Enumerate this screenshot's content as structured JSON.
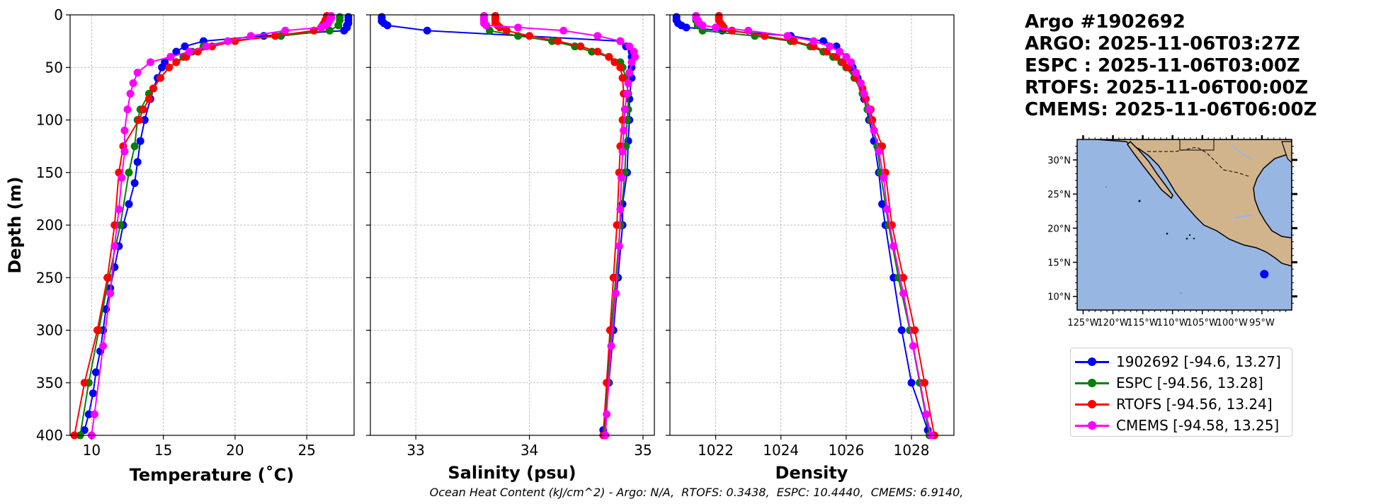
{
  "title_lines": [
    "Argo #1902692",
    "ARGO: 2025-11-06T03:27Z",
    "ESPC : 2025-11-06T03:00Z",
    "RTOFS: 2025-11-06T00:00Z",
    "CMEMS: 2025-11-06T06:00Z"
  ],
  "footer": "Ocean Heat Content (kJ/cm^2) - Argo: N/A,  RTOFS: 0.3438,  ESPC: 10.4440,  CMEMS: 6.9140,",
  "colors": {
    "argo": "#0000ff",
    "espc": "#008000",
    "rtofs": "#ff0000",
    "cmems": "#ff00ff",
    "ocean": "#98b6e2",
    "land": "#d2b48c"
  },
  "legend": [
    {
      "label": "1902692 [-94.6, 13.27]",
      "color": "#0000ff"
    },
    {
      "label": "ESPC [-94.56, 13.28]",
      "color": "#008000"
    },
    {
      "label": "RTOFS [-94.56, 13.24]",
      "color": "#ff0000"
    },
    {
      "label": "CMEMS [-94.58, 13.25]",
      "color": "#ff00ff"
    }
  ],
  "chart_data": [
    {
      "type": "line",
      "xlabel": "Temperature (˚C)",
      "ylabel": "Depth (m)",
      "xlim": [
        8.5,
        28.3
      ],
      "ylim": [
        400,
        0
      ],
      "xticks": [
        10,
        15,
        20,
        25
      ],
      "yticks": [
        0,
        50,
        100,
        150,
        200,
        250,
        300,
        350,
        400
      ],
      "grid": true,
      "series": [
        {
          "name": "1902692 [-94.6, 13.27]",
          "color": "#0000ff",
          "depth": [
            2,
            5,
            8,
            10,
            12,
            15,
            20,
            25,
            30,
            35,
            40,
            45,
            50,
            60,
            70,
            80,
            100,
            120,
            140,
            160,
            180,
            200,
            220,
            240,
            260,
            280,
            300,
            320,
            340,
            360,
            380,
            395
          ],
          "values": [
            27.9,
            27.9,
            27.9,
            27.8,
            27.8,
            27.6,
            22.0,
            17.8,
            16.5,
            15.9,
            15.5,
            15.1,
            14.9,
            14.6,
            14.3,
            14.1,
            13.7,
            13.4,
            13.2,
            13.0,
            12.6,
            12.2,
            11.9,
            11.6,
            11.3,
            11.0,
            10.8,
            10.6,
            10.3,
            10.1,
            9.8,
            9.5
          ]
        },
        {
          "name": "ESPC [-94.56, 13.28]",
          "color": "#008000",
          "depth": [
            2,
            5,
            10,
            15,
            20,
            25,
            30,
            35,
            40,
            45,
            50,
            60,
            75,
            90,
            100,
            125,
            150,
            200,
            250,
            300,
            350,
            400
          ],
          "values": [
            27.3,
            27.3,
            27.2,
            26.6,
            23.2,
            19.5,
            17.8,
            17.0,
            16.4,
            15.9,
            15.4,
            14.8,
            14.0,
            13.4,
            13.2,
            13.0,
            12.6,
            12.0,
            11.2,
            10.5,
            9.8,
            9.2
          ]
        },
        {
          "name": "RTOFS [-94.56, 13.24]",
          "color": "#ff0000",
          "depth": [
            1,
            3,
            5,
            8,
            10,
            12,
            15,
            20,
            25,
            30,
            35,
            40,
            45,
            50,
            60,
            70,
            80,
            90,
            100,
            125,
            150,
            200,
            250,
            300,
            350,
            400
          ],
          "values": [
            26.4,
            26.4,
            26.3,
            26.2,
            26.1,
            26.0,
            25.5,
            22.8,
            20.0,
            18.4,
            17.4,
            16.6,
            15.9,
            15.4,
            14.8,
            14.3,
            14.0,
            13.6,
            13.3,
            12.2,
            11.9,
            11.6,
            11.1,
            10.4,
            9.5,
            8.8
          ]
        },
        {
          "name": "CMEMS [-94.58, 13.25]",
          "color": "#ff00ff",
          "depth": [
            1,
            3,
            5,
            8,
            10,
            12,
            15,
            20,
            25,
            30,
            35,
            40,
            45,
            55,
            65,
            75,
            90,
            110,
            130,
            155,
            185,
            220,
            265,
            315,
            380,
            400
          ],
          "values": [
            26.7,
            26.7,
            26.6,
            26.5,
            26.3,
            26.0,
            23.5,
            21.1,
            19.5,
            18.0,
            16.8,
            15.5,
            14.1,
            13.2,
            12.9,
            12.7,
            12.5,
            12.3,
            12.3,
            12.1,
            11.9,
            11.6,
            11.3,
            10.8,
            10.2,
            10.0
          ]
        }
      ]
    },
    {
      "type": "line",
      "xlabel": "Salinity (psu)",
      "ylabel": "",
      "xlim": [
        32.6,
        35.1
      ],
      "ylim": [
        400,
        0
      ],
      "xticks": [
        33,
        34,
        35
      ],
      "yticks": [
        0,
        50,
        100,
        150,
        200,
        250,
        300,
        350,
        400
      ],
      "grid": true,
      "series": [
        {
          "name": "1902692 [-94.6, 13.27]",
          "color": "#0000ff",
          "depth": [
            2,
            4,
            6,
            8,
            10,
            15,
            25,
            30,
            35,
            40,
            50,
            60,
            80,
            100,
            120,
            150,
            180,
            200,
            250,
            300,
            350,
            395
          ],
          "values": [
            32.7,
            32.7,
            32.7,
            32.72,
            32.75,
            33.1,
            34.8,
            34.85,
            34.9,
            34.9,
            34.9,
            34.9,
            34.88,
            34.88,
            34.87,
            34.86,
            34.82,
            34.82,
            34.78,
            34.74,
            34.7,
            34.65
          ]
        },
        {
          "name": "ESPC [-94.56, 13.28]",
          "color": "#008000",
          "depth": [
            5,
            10,
            15,
            20,
            25,
            30,
            35,
            40,
            45,
            50,
            60,
            75,
            90,
            100,
            125,
            150,
            200,
            250,
            300,
            350,
            400
          ],
          "values": [
            33.6,
            33.62,
            33.65,
            33.9,
            34.2,
            34.4,
            34.55,
            34.7,
            34.8,
            34.82,
            34.85,
            34.87,
            34.87,
            34.86,
            34.85,
            34.84,
            34.8,
            34.76,
            34.72,
            34.69,
            34.66
          ]
        },
        {
          "name": "RTOFS [-94.56, 13.24]",
          "color": "#ff0000",
          "depth": [
            1,
            3,
            5,
            8,
            10,
            12,
            15,
            20,
            25,
            30,
            35,
            40,
            45,
            50,
            60,
            75,
            100,
            125,
            150,
            200,
            250,
            300,
            350,
            400
          ],
          "values": [
            33.7,
            33.7,
            33.7,
            33.7,
            33.72,
            33.74,
            33.8,
            34.0,
            34.25,
            34.45,
            34.6,
            34.7,
            34.75,
            34.8,
            34.82,
            34.83,
            34.82,
            34.8,
            34.79,
            34.77,
            34.74,
            34.71,
            34.68,
            34.65
          ]
        },
        {
          "name": "CMEMS [-94.58, 13.25]",
          "color": "#ff00ff",
          "depth": [
            1,
            3,
            5,
            8,
            10,
            12,
            15,
            20,
            25,
            30,
            35,
            40,
            45,
            55,
            65,
            75,
            90,
            110,
            130,
            155,
            185,
            220,
            265,
            315,
            380,
            400
          ],
          "values": [
            33.6,
            33.6,
            33.6,
            33.6,
            33.62,
            33.9,
            34.3,
            34.6,
            34.8,
            34.88,
            34.92,
            34.93,
            34.9,
            34.88,
            34.87,
            34.86,
            34.84,
            34.83,
            34.82,
            34.81,
            34.8,
            34.79,
            34.76,
            34.72,
            34.68,
            34.67
          ]
        }
      ]
    },
    {
      "type": "line",
      "xlabel": "Density",
      "ylabel": "",
      "xlim": [
        1020.6,
        1029.3
      ],
      "ylim": [
        400,
        0
      ],
      "xticks": [
        1022,
        1024,
        1026,
        1028
      ],
      "yticks": [
        0,
        50,
        100,
        150,
        200,
        250,
        300,
        350,
        400
      ],
      "grid": true,
      "series": [
        {
          "name": "1902692 [-94.6, 13.27]",
          "color": "#0000ff",
          "depth": [
            2,
            5,
            8,
            10,
            12,
            15,
            20,
            25,
            30,
            40,
            50,
            60,
            80,
            100,
            120,
            150,
            180,
            200,
            250,
            300,
            350,
            395
          ],
          "values": [
            1020.8,
            1020.8,
            1020.85,
            1020.95,
            1021.1,
            1022.2,
            1024.3,
            1025.3,
            1025.7,
            1026.0,
            1026.2,
            1026.35,
            1026.55,
            1026.7,
            1026.85,
            1027.0,
            1027.1,
            1027.2,
            1027.45,
            1027.7,
            1028.0,
            1028.5
          ]
        },
        {
          "name": "ESPC [-94.56, 13.28]",
          "color": "#008000",
          "depth": [
            5,
            10,
            15,
            20,
            25,
            30,
            35,
            40,
            45,
            50,
            60,
            75,
            90,
            100,
            125,
            150,
            200,
            250,
            300,
            350,
            400
          ],
          "values": [
            1021.4,
            1021.45,
            1021.6,
            1023.2,
            1024.3,
            1024.9,
            1025.3,
            1025.6,
            1025.85,
            1026.0,
            1026.25,
            1026.5,
            1026.65,
            1026.75,
            1026.95,
            1027.05,
            1027.3,
            1027.6,
            1027.95,
            1028.25,
            1028.55
          ]
        },
        {
          "name": "RTOFS [-94.56, 13.24]",
          "color": "#ff0000",
          "depth": [
            1,
            3,
            5,
            8,
            10,
            12,
            15,
            20,
            25,
            30,
            35,
            40,
            45,
            50,
            60,
            70,
            80,
            90,
            100,
            125,
            150,
            200,
            250,
            300,
            350,
            400
          ],
          "values": [
            1022.1,
            1022.1,
            1022.1,
            1022.15,
            1022.2,
            1022.25,
            1022.5,
            1023.5,
            1024.4,
            1025.0,
            1025.4,
            1025.7,
            1025.9,
            1026.05,
            1026.3,
            1026.5,
            1026.6,
            1026.75,
            1026.8,
            1027.1,
            1027.2,
            1027.4,
            1027.75,
            1028.1,
            1028.4,
            1028.7
          ]
        },
        {
          "name": "CMEMS [-94.58, 13.25]",
          "color": "#ff00ff",
          "depth": [
            1,
            3,
            5,
            8,
            10,
            12,
            15,
            20,
            25,
            30,
            35,
            40,
            45,
            55,
            65,
            75,
            90,
            110,
            130,
            155,
            185,
            220,
            265,
            315,
            380,
            400
          ],
          "values": [
            1021.4,
            1021.4,
            1021.45,
            1021.5,
            1021.6,
            1022.0,
            1023.0,
            1024.2,
            1025.0,
            1025.5,
            1025.8,
            1026.0,
            1026.15,
            1026.3,
            1026.45,
            1026.55,
            1026.7,
            1026.85,
            1027.0,
            1027.15,
            1027.25,
            1027.45,
            1027.75,
            1028.05,
            1028.45,
            1028.6
          ]
        }
      ]
    },
    {
      "type": "map",
      "lat_ticks": [
        "30°N",
        "25°N",
        "20°N",
        "15°N",
        "10°N"
      ],
      "lon_ticks": [
        "125°W",
        "120°W",
        "115°W",
        "110°W",
        "105°W",
        "100°W",
        "95°W"
      ],
      "lat_values": [
        30,
        25,
        20,
        15,
        10
      ],
      "lon_values": [
        -125,
        -120,
        -115,
        -110,
        -105,
        -100,
        -95
      ],
      "extent": {
        "lon": [
          -126,
          -90
        ],
        "lat": [
          8,
          33
        ]
      },
      "marker": {
        "lon": -94.6,
        "lat": 13.27,
        "color": "#0000ff"
      }
    }
  ]
}
